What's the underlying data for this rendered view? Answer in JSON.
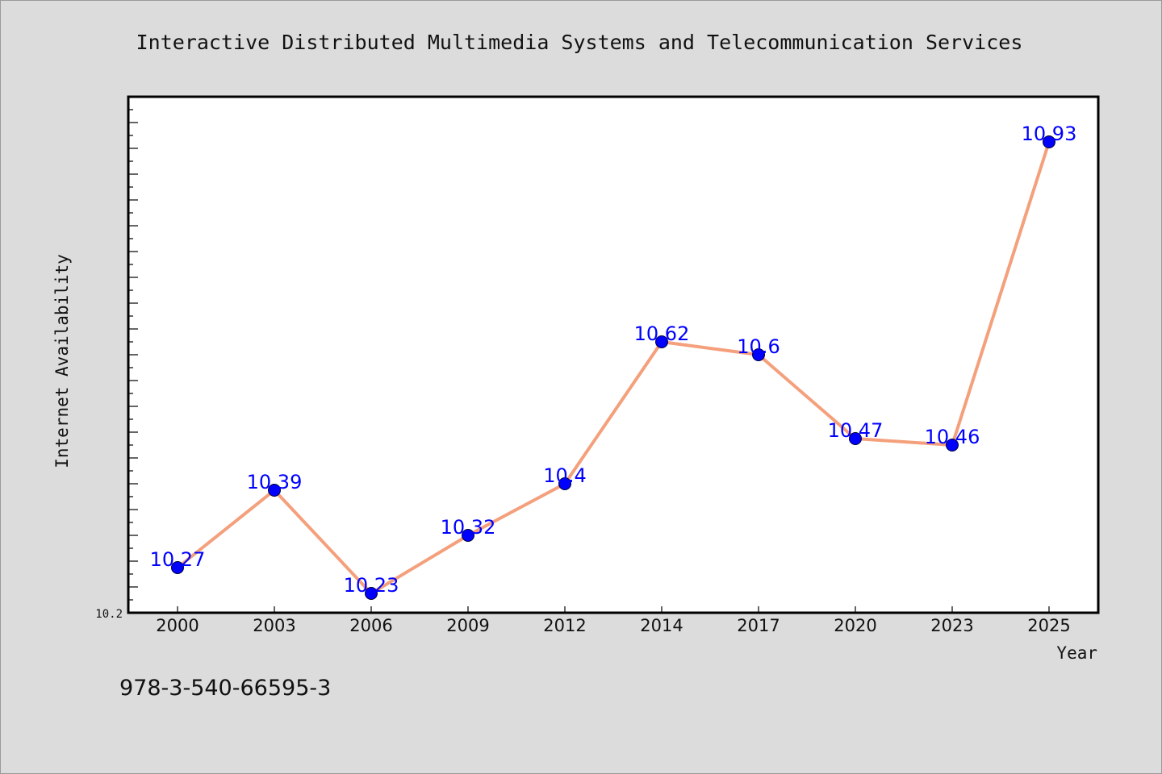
{
  "chart_data": {
    "type": "line",
    "title": "Interactive Distributed Multimedia Systems and Telecommunication Services",
    "xlabel": "Year",
    "ylabel": "Internet Availability",
    "categories": [
      "2000",
      "2003",
      "2006",
      "2009",
      "2012",
      "2014",
      "2017",
      "2020",
      "2023",
      "2025"
    ],
    "values": [
      10.27,
      10.39,
      10.23,
      10.32,
      10.4,
      10.62,
      10.6,
      10.47,
      10.46,
      10.93
    ],
    "data_labels": [
      "10.27",
      "10.39",
      "10.23",
      "10.32",
      "10.4",
      "10.62",
      "10.6",
      "10.47",
      "10.46",
      "10.93"
    ],
    "y_tick_labels": [
      "10.2"
    ],
    "ylim": [
      10.2,
      11.0
    ],
    "grid": false,
    "line_color": "#f4a07c",
    "marker_color": "#0000ff",
    "label_color": "#0000ff"
  },
  "footer": {
    "isbn": "978-3-540-66595-3"
  }
}
